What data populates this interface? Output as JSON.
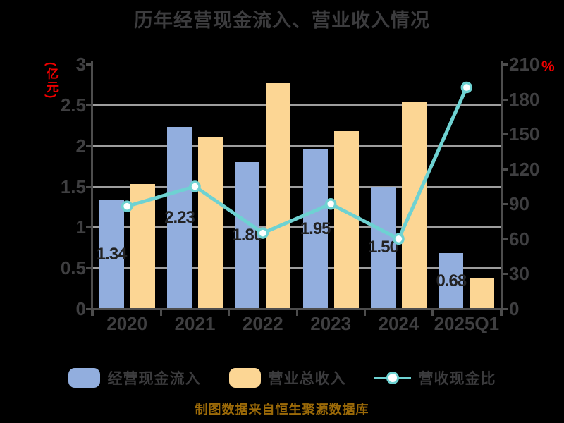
{
  "title": "历年经营现金流入、营业收入情况",
  "axes": {
    "left": {
      "unit_label": "(亿元)",
      "ticks": [
        "0",
        "0.5",
        "1",
        "1.5",
        "2",
        "2.5",
        "3"
      ],
      "max": 3
    },
    "right": {
      "unit_label": "%",
      "ticks": [
        "0",
        "30",
        "60",
        "90",
        "120",
        "150",
        "180",
        "210"
      ],
      "max": 210
    }
  },
  "chart_data": {
    "type": "bar",
    "subtype": "grouped-bars-with-line",
    "title": "历年经营现金流入、营业收入情况",
    "categories": [
      "2020",
      "2021",
      "2022",
      "2023",
      "2024",
      "2025Q1"
    ],
    "series": [
      {
        "name": "经营现金流入",
        "type": "bar",
        "axis": "left",
        "unit": "亿元",
        "values": [
          1.34,
          2.23,
          1.8,
          1.95,
          1.5,
          0.68
        ],
        "labels": [
          "1.34",
          "2.23",
          "1.80",
          "1.95",
          "1.50",
          "0.68"
        ]
      },
      {
        "name": "营业总收入",
        "type": "bar",
        "axis": "left",
        "unit": "亿元",
        "values": [
          1.53,
          2.11,
          2.77,
          2.18,
          2.53,
          0.37
        ]
      },
      {
        "name": "营收现金比",
        "type": "line",
        "axis": "right",
        "unit": "%",
        "values": [
          88,
          105,
          65,
          90,
          60,
          190
        ]
      }
    ],
    "left_ylim": [
      0,
      3
    ],
    "right_ylim": [
      0,
      210
    ],
    "grid": "horizontal",
    "legend_position": "bottom"
  },
  "legend": {
    "items": [
      {
        "label": "经营现金流入",
        "swatch": "blue-bar"
      },
      {
        "label": "营业总收入",
        "swatch": "yellow-bar"
      },
      {
        "label": "营收现金比",
        "swatch": "teal-line-marker"
      }
    ]
  },
  "footer": {
    "text": "制图数据来自恒生聚源数据库"
  },
  "colors": {
    "background": "#000000",
    "bar_cash": "#92aede",
    "bar_revenue": "#fcd694",
    "ratio_line": "#6ed2d2",
    "marker_fill": "#ffffff",
    "axis_text": "#3f3f41",
    "title_text": "#3c3c3e",
    "data_label": "#232323",
    "red_accent": "#ee0000",
    "footer_text": "#9c6a08",
    "gridline": "#9e9e9e",
    "spine": "#4d4d4d"
  }
}
